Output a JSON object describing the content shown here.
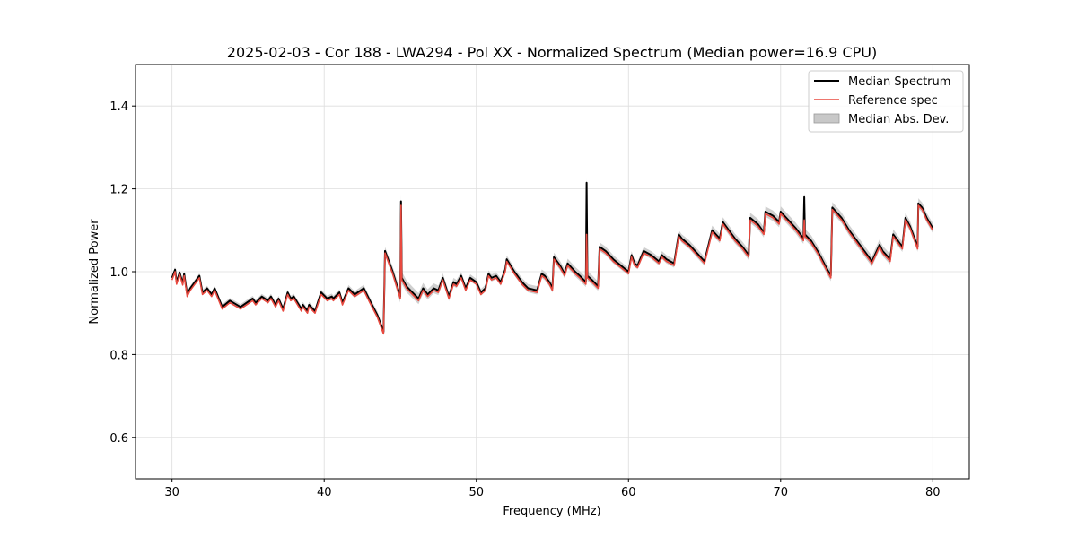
{
  "chart_data": {
    "type": "line",
    "title": "2025-02-03 - Cor 188 - LWA294 - Pol XX - Normalized Spectrum (Median power=16.9 CPU)",
    "xlabel": "Frequency (MHz)",
    "ylabel": "Normalized Power",
    "xlim": [
      27.6,
      82.4
    ],
    "ylim": [
      0.5,
      1.5
    ],
    "xticks": [
      30,
      40,
      50,
      60,
      70,
      80
    ],
    "yticks": [
      0.6,
      0.8,
      1.0,
      1.2,
      1.4
    ],
    "xtick_labels": [
      "30",
      "40",
      "50",
      "60",
      "70",
      "80"
    ],
    "ytick_labels": [
      "0.6",
      "0.8",
      "1.0",
      "1.2",
      "1.4"
    ],
    "grid": true,
    "legend_position": "top-right",
    "legend": [
      {
        "label": "Median Spectrum",
        "kind": "line",
        "color": "#000000"
      },
      {
        "label": "Reference spec",
        "kind": "line",
        "color": "#e8493f"
      },
      {
        "label": "Median Abs. Dev.",
        "kind": "patch",
        "color": "#c8c8c8"
      }
    ],
    "series": [
      {
        "name": "Median Spectrum",
        "color": "#000000",
        "x": [
          30.0,
          30.2,
          30.3,
          30.5,
          30.7,
          30.8,
          31.0,
          31.2,
          31.5,
          31.8,
          32.0,
          32.3,
          32.6,
          32.8,
          33.3,
          33.8,
          34.5,
          35.3,
          35.5,
          35.9,
          36.3,
          36.5,
          36.8,
          37.0,
          37.3,
          37.6,
          37.8,
          38.0,
          38.5,
          38.6,
          38.9,
          39.0,
          39.4,
          39.8,
          40.2,
          40.5,
          40.6,
          41.0,
          41.2,
          41.6,
          42.0,
          42.6,
          43.0,
          43.5,
          43.9,
          44.0,
          44.5,
          45.0,
          45.05,
          45.1,
          45.4,
          45.8,
          46.2,
          46.5,
          46.8,
          47.2,
          47.5,
          47.8,
          48.2,
          48.5,
          48.7,
          49.0,
          49.3,
          49.6,
          50.0,
          50.3,
          50.6,
          50.8,
          51.0,
          51.3,
          51.6,
          51.9,
          52.0,
          52.5,
          53.0,
          53.4,
          54.0,
          54.3,
          54.5,
          54.8,
          55.0,
          55.1,
          55.5,
          55.8,
          56.0,
          56.5,
          56.8,
          57.2,
          57.25,
          57.3,
          57.6,
          58.0,
          58.1,
          58.5,
          59.0,
          59.5,
          60.0,
          60.2,
          60.4,
          60.6,
          61.0,
          61.5,
          62.0,
          62.2,
          62.5,
          63.0,
          63.3,
          63.5,
          64.0,
          64.5,
          65.0,
          65.5,
          66.0,
          66.2,
          66.6,
          67.0,
          67.5,
          67.9,
          68.0,
          68.5,
          68.9,
          69.0,
          69.5,
          69.9,
          70.0,
          70.5,
          71.0,
          71.5,
          71.55,
          71.6,
          72.0,
          72.5,
          73.0,
          73.3,
          73.4,
          74.0,
          74.5,
          75.0,
          75.5,
          76.0,
          76.5,
          76.7,
          77.2,
          77.4,
          77.7,
          78.0,
          78.2,
          78.5,
          79.0,
          79.05,
          79.3,
          79.6,
          80.0
        ],
        "y": [
          0.985,
          1.005,
          0.975,
          0.998,
          0.972,
          0.995,
          0.945,
          0.96,
          0.975,
          0.99,
          0.95,
          0.96,
          0.945,
          0.96,
          0.915,
          0.93,
          0.915,
          0.935,
          0.925,
          0.94,
          0.93,
          0.94,
          0.92,
          0.935,
          0.91,
          0.95,
          0.935,
          0.94,
          0.91,
          0.92,
          0.905,
          0.92,
          0.905,
          0.95,
          0.935,
          0.94,
          0.935,
          0.95,
          0.925,
          0.96,
          0.945,
          0.96,
          0.93,
          0.895,
          0.855,
          1.05,
          1.0,
          0.94,
          1.17,
          0.985,
          0.965,
          0.95,
          0.935,
          0.96,
          0.945,
          0.96,
          0.955,
          0.985,
          0.94,
          0.975,
          0.97,
          0.99,
          0.96,
          0.985,
          0.975,
          0.95,
          0.96,
          0.995,
          0.985,
          0.99,
          0.975,
          1.005,
          1.03,
          1.0,
          0.975,
          0.96,
          0.955,
          0.995,
          0.99,
          0.975,
          0.96,
          1.035,
          1.015,
          0.995,
          1.02,
          1.0,
          0.99,
          0.975,
          1.215,
          0.99,
          0.98,
          0.965,
          1.06,
          1.05,
          1.03,
          1.015,
          1.0,
          1.04,
          1.02,
          1.015,
          1.05,
          1.04,
          1.025,
          1.04,
          1.03,
          1.02,
          1.09,
          1.08,
          1.065,
          1.045,
          1.025,
          1.1,
          1.08,
          1.12,
          1.1,
          1.08,
          1.06,
          1.04,
          1.13,
          1.115,
          1.095,
          1.145,
          1.135,
          1.12,
          1.145,
          1.125,
          1.105,
          1.08,
          1.18,
          1.09,
          1.075,
          1.045,
          1.01,
          0.99,
          1.155,
          1.13,
          1.1,
          1.075,
          1.05,
          1.025,
          1.065,
          1.05,
          1.03,
          1.09,
          1.075,
          1.06,
          1.13,
          1.11,
          1.06,
          1.165,
          1.155,
          1.13,
          1.105
        ]
      },
      {
        "name": "Reference spec",
        "color": "#e8493f",
        "x": [
          30.0,
          30.2,
          30.3,
          30.5,
          30.7,
          30.8,
          31.0,
          31.2,
          31.5,
          31.8,
          32.0,
          32.3,
          32.6,
          32.8,
          33.3,
          33.8,
          34.5,
          35.3,
          35.5,
          35.9,
          36.3,
          36.5,
          36.8,
          37.0,
          37.3,
          37.6,
          37.8,
          38.0,
          38.5,
          38.6,
          38.9,
          39.0,
          39.4,
          39.8,
          40.2,
          40.5,
          40.6,
          41.0,
          41.2,
          41.6,
          42.0,
          42.6,
          43.0,
          43.5,
          43.9,
          44.0,
          44.5,
          45.0,
          45.05,
          45.1,
          45.4,
          45.8,
          46.2,
          46.5,
          46.8,
          47.2,
          47.5,
          47.8,
          48.2,
          48.5,
          48.7,
          49.0,
          49.3,
          49.6,
          50.0,
          50.3,
          50.6,
          50.8,
          51.0,
          51.3,
          51.6,
          51.9,
          52.0,
          52.5,
          53.0,
          53.4,
          54.0,
          54.3,
          54.5,
          54.8,
          55.0,
          55.1,
          55.5,
          55.8,
          56.0,
          56.5,
          56.8,
          57.2,
          57.25,
          57.3,
          57.6,
          58.0,
          58.1,
          58.5,
          59.0,
          59.5,
          60.0,
          60.2,
          60.4,
          60.6,
          61.0,
          61.5,
          62.0,
          62.2,
          62.5,
          63.0,
          63.3,
          63.5,
          64.0,
          64.5,
          65.0,
          65.5,
          66.0,
          66.2,
          66.6,
          67.0,
          67.5,
          67.9,
          68.0,
          68.5,
          68.9,
          69.0,
          69.5,
          69.9,
          70.0,
          70.5,
          71.0,
          71.5,
          71.55,
          71.6,
          72.0,
          72.5,
          73.0,
          73.3,
          73.4,
          74.0,
          74.5,
          75.0,
          75.5,
          76.0,
          76.5,
          76.7,
          77.2,
          77.4,
          77.7,
          78.0,
          78.2,
          78.5,
          79.0,
          79.05,
          79.3,
          79.6,
          80.0
        ],
        "y": [
          0.98,
          1.0,
          0.97,
          0.993,
          0.968,
          0.99,
          0.94,
          0.955,
          0.97,
          0.985,
          0.945,
          0.955,
          0.94,
          0.955,
          0.91,
          0.925,
          0.91,
          0.93,
          0.92,
          0.935,
          0.925,
          0.935,
          0.915,
          0.93,
          0.905,
          0.945,
          0.93,
          0.935,
          0.905,
          0.915,
          0.9,
          0.915,
          0.9,
          0.945,
          0.93,
          0.935,
          0.93,
          0.945,
          0.92,
          0.955,
          0.94,
          0.955,
          0.925,
          0.89,
          0.85,
          1.045,
          0.995,
          0.935,
          1.16,
          0.98,
          0.96,
          0.945,
          0.93,
          0.955,
          0.94,
          0.955,
          0.95,
          0.98,
          0.935,
          0.97,
          0.965,
          0.985,
          0.955,
          0.98,
          0.97,
          0.945,
          0.955,
          0.99,
          0.98,
          0.985,
          0.97,
          1.0,
          1.025,
          0.995,
          0.97,
          0.955,
          0.95,
          0.99,
          0.985,
          0.97,
          0.955,
          1.03,
          1.01,
          0.99,
          1.015,
          0.995,
          0.985,
          0.97,
          1.09,
          0.985,
          0.975,
          0.96,
          1.055,
          1.045,
          1.025,
          1.01,
          0.995,
          1.035,
          1.015,
          1.01,
          1.045,
          1.035,
          1.02,
          1.035,
          1.025,
          1.015,
          1.085,
          1.075,
          1.06,
          1.04,
          1.02,
          1.095,
          1.075,
          1.115,
          1.095,
          1.075,
          1.055,
          1.035,
          1.125,
          1.11,
          1.09,
          1.14,
          1.13,
          1.115,
          1.14,
          1.12,
          1.1,
          1.075,
          1.125,
          1.085,
          1.07,
          1.04,
          1.005,
          0.985,
          1.15,
          1.125,
          1.095,
          1.07,
          1.045,
          1.02,
          1.06,
          1.045,
          1.025,
          1.085,
          1.07,
          1.055,
          1.125,
          1.105,
          1.055,
          1.16,
          1.15,
          1.125,
          1.1
        ]
      }
    ],
    "mad_halfwidth": {
      "name": "Median Abs. Dev.",
      "color": "#c8c8c8",
      "x": [
        30.0,
        40.0,
        43.9,
        45.05,
        50.0,
        57.25,
        60.0,
        65.0,
        70.0,
        75.0,
        80.0
      ],
      "y": [
        0.006,
        0.007,
        0.009,
        0.015,
        0.008,
        0.012,
        0.009,
        0.011,
        0.013,
        0.013,
        0.012
      ]
    }
  }
}
